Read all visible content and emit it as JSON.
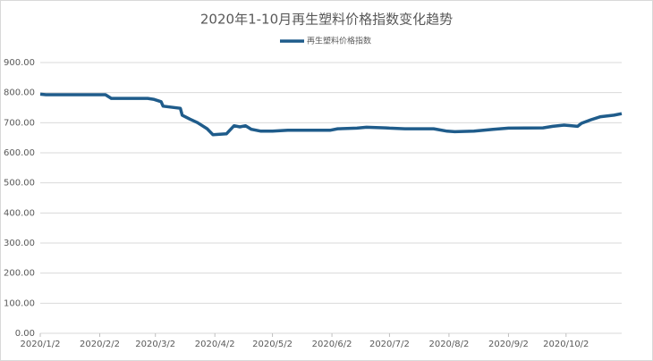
{
  "chart_data": {
    "type": "line",
    "title": "2020年1-10月再生塑料价格指数变化趋势",
    "series": [
      {
        "name": "再生塑料价格指数",
        "color": "#1f5c8b",
        "x": [
          "2020/1/2",
          "2020/1/5",
          "2020/2/5",
          "2020/2/8",
          "2020/2/27",
          "2020/3/1",
          "2020/3/5",
          "2020/3/6",
          "2020/3/15",
          "2020/3/16",
          "2020/3/20",
          "2020/3/24",
          "2020/3/29",
          "2020/4/1",
          "2020/4/8",
          "2020/4/12",
          "2020/4/15",
          "2020/4/18",
          "2020/4/21",
          "2020/4/26",
          "2020/5/2",
          "2020/5/10",
          "2020/6/1",
          "2020/6/5",
          "2020/6/15",
          "2020/6/20",
          "2020/6/30",
          "2020/7/2",
          "2020/7/10",
          "2020/7/25",
          "2020/8/1",
          "2020/8/5",
          "2020/8/15",
          "2020/8/25",
          "2020/9/2",
          "2020/9/20",
          "2020/9/25",
          "2020/10/1",
          "2020/10/8",
          "2020/10/10",
          "2020/10/15",
          "2020/10/20",
          "2020/10/27",
          "2020/10/31"
        ],
        "values": [
          795,
          793,
          793,
          781,
          781,
          778,
          770,
          755,
          748,
          725,
          712,
          700,
          680,
          660,
          663,
          690,
          686,
          690,
          678,
          672,
          672,
          675,
          675,
          680,
          682,
          685,
          683,
          682,
          680,
          680,
          672,
          670,
          672,
          678,
          682,
          683,
          688,
          692,
          688,
          698,
          710,
          720,
          725,
          730
        ]
      }
    ],
    "ylim": [
      0,
      900
    ],
    "yticks": [
      {
        "value": 0,
        "label": "0.00"
      },
      {
        "value": 100,
        "label": "100.00"
      },
      {
        "value": 200,
        "label": "200.00"
      },
      {
        "value": 300,
        "label": "300.00"
      },
      {
        "value": 400,
        "label": "400.00"
      },
      {
        "value": 500,
        "label": "500.00"
      },
      {
        "value": 600,
        "label": "600.00"
      },
      {
        "value": 700,
        "label": "700.00"
      },
      {
        "value": 800,
        "label": "800.00"
      },
      {
        "value": 900,
        "label": "900.00"
      }
    ],
    "xlim": [
      "2020/1/2",
      "2020/10/31"
    ],
    "xticks": [
      "2020/1/2",
      "2020/2/2",
      "2020/3/2",
      "2020/4/2",
      "2020/5/2",
      "2020/6/2",
      "2020/7/2",
      "2020/8/2",
      "2020/9/2",
      "2020/10/2"
    ],
    "grid": true
  }
}
